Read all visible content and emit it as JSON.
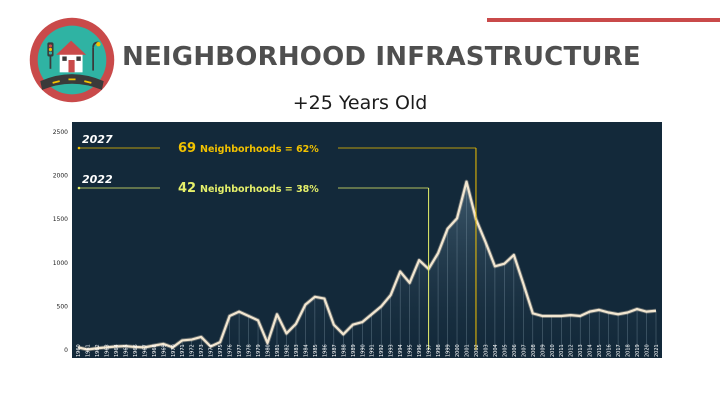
{
  "header": {
    "title": "NEIGHBORHOOD INFRASTRUCTURE",
    "subtitle": "+25 Years Old",
    "accent_color": "#c94a4a",
    "logo_icon": "neighborhood-house-road-icon"
  },
  "chart_data": {
    "type": "area",
    "title": "",
    "xlabel": "",
    "ylabel": "",
    "ylim": [
      0,
      2500
    ],
    "yticks": [
      0,
      500,
      1000,
      1500,
      2000,
      2500
    ],
    "grid": false,
    "background_color": "#13293a",
    "line_color": "#f2e6d0",
    "x": [
      1960,
      1961,
      1962,
      1963,
      1964,
      1965,
      1966,
      1967,
      1968,
      1969,
      1970,
      1971,
      1972,
      1973,
      1974,
      1975,
      1976,
      1977,
      1978,
      1979,
      1980,
      1981,
      1982,
      1983,
      1984,
      1985,
      1986,
      1987,
      1988,
      1989,
      1990,
      1991,
      1992,
      1993,
      1994,
      1995,
      1996,
      1997,
      1998,
      1999,
      2000,
      2001,
      2002,
      2003,
      2004,
      2005,
      2006,
      2007,
      2008,
      2009,
      2010,
      2011,
      2012,
      2013,
      2014,
      2015,
      2016,
      2017,
      2018,
      2019,
      2020,
      2021
    ],
    "values": [
      30,
      5,
      20,
      30,
      40,
      45,
      35,
      30,
      50,
      70,
      30,
      110,
      120,
      150,
      40,
      90,
      390,
      440,
      390,
      340,
      80,
      410,
      190,
      300,
      520,
      610,
      590,
      290,
      180,
      290,
      320,
      410,
      500,
      630,
      900,
      770,
      1030,
      930,
      1110,
      1390,
      1510,
      1930,
      1500,
      1240,
      960,
      990,
      1090,
      760,
      420,
      390,
      390,
      390,
      400,
      390,
      440,
      460,
      430,
      410,
      430,
      470,
      440,
      450
    ],
    "annotations": [
      {
        "year_label": "2027",
        "count": "69",
        "text": "Neighborhoods = 62%",
        "marker_x": 2002,
        "color": "#f2c200"
      },
      {
        "year_label": "2022",
        "count": "42",
        "text": "Neighborhoods = 38%",
        "marker_x": 1997,
        "color": "#e6f06a"
      }
    ]
  }
}
